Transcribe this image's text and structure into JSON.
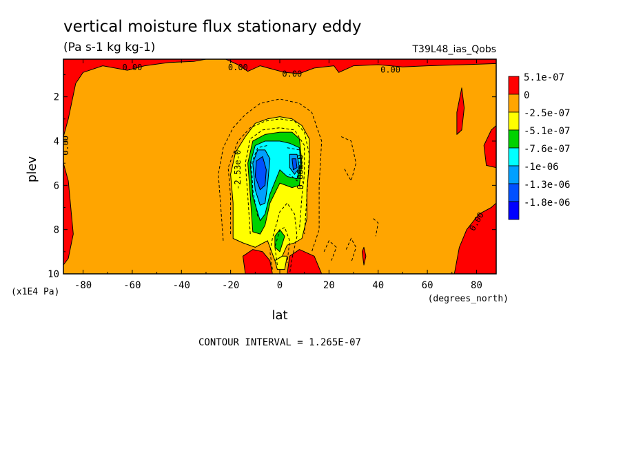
{
  "chart_data": {
    "type": "heatmap",
    "title": "vertical moisture flux stationary eddy",
    "units_label": "(Pa s-1 kg kg-1)",
    "run_label": "T39L48_ias_Qobs",
    "xlabel": "lat",
    "ylabel": "plev",
    "x_units": "(degrees_north)",
    "y_units": "(x1E4 Pa)",
    "xlim": [
      -88,
      88
    ],
    "ylim": [
      10,
      0.3
    ],
    "x_ticks": [
      -80,
      -60,
      -40,
      -20,
      0,
      20,
      40,
      60,
      80
    ],
    "x_tick_labels": [
      "-80",
      "-60",
      "-40",
      "-20",
      "0",
      "20",
      "40",
      "60",
      "80"
    ],
    "y_ticks": [
      2,
      4,
      6,
      8,
      10
    ],
    "y_tick_labels": [
      "2",
      "4",
      "6",
      "8",
      "10"
    ],
    "contour_interval_text": "CONTOUR INTERVAL = 1.265E-07",
    "legend": [
      {
        "label": "5.1e-07",
        "color": "#ff0000"
      },
      {
        "label": "0",
        "color": "#ffa500"
      },
      {
        "label": "-2.5e-07",
        "color": "#ffff00"
      },
      {
        "label": "-5.1e-07",
        "color": "#00d200"
      },
      {
        "label": "-7.6e-07",
        "color": "#00ffff"
      },
      {
        "label": "-1e-06",
        "color": "#00a0ff"
      },
      {
        "label": "-1.3e-06",
        "color": "#0050ff"
      },
      {
        "label": "-1.8e-06",
        "color": "#0000ff"
      }
    ],
    "background_color": "#ffa500",
    "contour_labels": [
      {
        "text": "0.00",
        "lat": -60,
        "plev": 0.8,
        "angle": 0
      },
      {
        "text": "0.00",
        "lat": -17,
        "plev": 0.8,
        "angle": 0
      },
      {
        "text": "0.00",
        "lat": 5,
        "plev": 1.1,
        "angle": 0
      },
      {
        "text": "0.00",
        "lat": 45,
        "plev": 0.9,
        "angle": 0
      },
      {
        "text": "0.00",
        "lat": -86,
        "plev": 4.2,
        "angle": -90
      },
      {
        "text": "0.00",
        "lat": 81,
        "plev": 7.7,
        "angle": -60
      },
      {
        "text": "-2.53e-0",
        "lat": -16,
        "plev": 5.3,
        "angle": -90
      },
      {
        "text": "0.00e+0",
        "lat": 9.5,
        "plev": 5.4,
        "angle": -90
      }
    ],
    "regions": [
      {
        "value": "pos",
        "color": "#ff0000",
        "points": [
          [
            -88,
            0.3
          ],
          [
            -88,
            3.8
          ],
          [
            -86,
            3.0
          ],
          [
            -83,
            1.4
          ],
          [
            -80,
            0.9
          ],
          [
            -72,
            0.6
          ],
          [
            -62,
            0.8
          ],
          [
            -55,
            0.6
          ],
          [
            -45,
            0.45
          ],
          [
            -35,
            0.4
          ],
          [
            -30,
            0.3
          ]
        ]
      },
      {
        "value": "pos",
        "color": "#ff0000",
        "points": [
          [
            -88,
            5.0
          ],
          [
            -86,
            5.8
          ],
          [
            -85,
            7.0
          ],
          [
            -84,
            8.2
          ],
          [
            -86,
            9.3
          ],
          [
            -88,
            9.6
          ]
        ]
      },
      {
        "value": "pos",
        "color": "#ff0000",
        "points": [
          [
            -22,
            0.3
          ],
          [
            -17,
            0.55
          ],
          [
            -13,
            0.85
          ],
          [
            -8,
            0.6
          ],
          [
            -3,
            0.75
          ],
          [
            2,
            0.9
          ],
          [
            8,
            0.95
          ],
          [
            14,
            0.7
          ],
          [
            22,
            0.6
          ],
          [
            24,
            0.9
          ],
          [
            30,
            0.6
          ],
          [
            40,
            0.55
          ],
          [
            50,
            0.65
          ],
          [
            60,
            0.6
          ],
          [
            75,
            0.55
          ],
          [
            88,
            0.5
          ],
          [
            88,
            0.3
          ]
        ]
      },
      {
        "value": "pos",
        "color": "#ff0000",
        "points": [
          [
            -14,
            10
          ],
          [
            -15,
            9.2
          ],
          [
            -11,
            8.9
          ],
          [
            -7,
            9.0
          ],
          [
            -4,
            9.4
          ],
          [
            -3,
            10
          ]
        ]
      },
      {
        "value": "pos",
        "color": "#ff0000",
        "points": [
          [
            3,
            10
          ],
          [
            4,
            9.2
          ],
          [
            8,
            8.9
          ],
          [
            14,
            9.2
          ],
          [
            17,
            10
          ]
        ]
      },
      {
        "value": "pos",
        "color": "#ff0000",
        "points": [
          [
            71,
            10
          ],
          [
            73,
            8.8
          ],
          [
            76,
            8.0
          ],
          [
            81,
            7.3
          ],
          [
            86,
            7.0
          ],
          [
            88,
            6.8
          ],
          [
            88,
            10
          ]
        ]
      },
      {
        "value": "pos",
        "color": "#ff0000",
        "points": [
          [
            88,
            5.2
          ],
          [
            84,
            5.1
          ],
          [
            83,
            4.2
          ],
          [
            86,
            3.5
          ],
          [
            88,
            3.3
          ]
        ]
      },
      {
        "value": "pos",
        "color": "#ff0000",
        "points": [
          [
            72,
            2.7
          ],
          [
            74,
            1.6
          ],
          [
            75,
            2.5
          ],
          [
            74,
            3.5
          ],
          [
            72,
            3.7
          ]
        ]
      },
      {
        "value": "pos",
        "color": "#ff0000",
        "points": [
          [
            33.5,
            9.0
          ],
          [
            34.2,
            8.8
          ],
          [
            35,
            9.2
          ],
          [
            34.2,
            9.6
          ]
        ]
      },
      {
        "value": "neg1",
        "color": "#ffff00",
        "points": [
          [
            -19,
            8.4
          ],
          [
            -19,
            6.8
          ],
          [
            -20,
            5.5
          ],
          [
            -18,
            4.5
          ],
          [
            -14,
            3.8
          ],
          [
            -10,
            3.2
          ],
          [
            -5,
            3.0
          ],
          [
            0,
            2.9
          ],
          [
            5,
            3.0
          ],
          [
            9,
            3.3
          ],
          [
            12,
            3.9
          ],
          [
            12,
            5.0
          ],
          [
            11,
            6.2
          ],
          [
            11,
            7.5
          ],
          [
            9,
            8.4
          ],
          [
            6,
            8.6
          ],
          [
            3,
            8.7
          ],
          [
            1,
            9.2
          ],
          [
            -2,
            9.4
          ],
          [
            -5,
            8.5
          ],
          [
            -10,
            8.8
          ],
          [
            -15,
            8.6
          ]
        ]
      },
      {
        "value": "neg1",
        "color": "#ffff00",
        "points": [
          [
            -2,
            9.4
          ],
          [
            -1,
            9.8
          ],
          [
            2,
            9.8
          ],
          [
            3,
            9.2
          ],
          [
            1,
            9.2
          ]
        ]
      },
      {
        "value": "neg2",
        "color": "#00d200",
        "points": [
          [
            -11,
            8.1
          ],
          [
            -12,
            6.5
          ],
          [
            -13,
            5.0
          ],
          [
            -11,
            4.0
          ],
          [
            -6,
            3.7
          ],
          [
            0,
            3.6
          ],
          [
            5,
            3.6
          ],
          [
            8,
            3.9
          ],
          [
            9,
            5.0
          ],
          [
            8,
            6.0
          ],
          [
            5,
            6.1
          ],
          [
            0,
            5.9
          ],
          [
            -4,
            6.8
          ],
          [
            -6,
            7.8
          ],
          [
            -8,
            8.2
          ]
        ]
      },
      {
        "value": "neg2",
        "color": "#00d200",
        "points": [
          [
            -2,
            8.3
          ],
          [
            0,
            8.0
          ],
          [
            2,
            8.3
          ],
          [
            0,
            9.0
          ],
          [
            -2,
            8.8
          ]
        ]
      },
      {
        "value": "neg3",
        "color": "#00ffff",
        "points": [
          [
            -8,
            7.6
          ],
          [
            -11,
            6.5
          ],
          [
            -12,
            5.0
          ],
          [
            -10,
            4.2
          ],
          [
            -6,
            4.0
          ],
          [
            0,
            4.0
          ],
          [
            4,
            4.1
          ],
          [
            8,
            4.3
          ],
          [
            8.5,
            5.0
          ],
          [
            7,
            5.7
          ],
          [
            3,
            5.6
          ],
          [
            0,
            5.3
          ],
          [
            -4,
            6.4
          ],
          [
            -6,
            7.3
          ]
        ]
      },
      {
        "value": "neg4",
        "color": "#00a0ff",
        "points": [
          [
            -8,
            6.9
          ],
          [
            -10,
            6.2
          ],
          [
            -11,
            5.0
          ],
          [
            -9,
            4.4
          ],
          [
            -6,
            4.4
          ],
          [
            -4,
            4.8
          ],
          [
            -5,
            6.0
          ],
          [
            -6,
            6.8
          ]
        ]
      },
      {
        "value": "neg4",
        "color": "#00a0ff",
        "points": [
          [
            4,
            4.6
          ],
          [
            7,
            4.6
          ],
          [
            8,
            5.2
          ],
          [
            6,
            5.5
          ],
          [
            4,
            5.2
          ]
        ]
      },
      {
        "value": "neg5",
        "color": "#0050ff",
        "points": [
          [
            -8,
            6.2
          ],
          [
            -10,
            5.6
          ],
          [
            -9.5,
            4.9
          ],
          [
            -7,
            4.7
          ],
          [
            -5.5,
            5.3
          ],
          [
            -6,
            6.0
          ]
        ]
      },
      {
        "value": "neg5",
        "color": "#0050ff",
        "points": [
          [
            5,
            4.8
          ],
          [
            6.5,
            4.8
          ],
          [
            7,
            5.2
          ],
          [
            5.5,
            5.3
          ]
        ]
      }
    ],
    "dashed_contours": [
      [
        [
          -23,
          8.5
        ],
        [
          -24,
          7.0
        ],
        [
          -25,
          5.5
        ],
        [
          -23,
          4.3
        ],
        [
          -19,
          3.4
        ],
        [
          -14,
          2.8
        ],
        [
          -8,
          2.3
        ],
        [
          0,
          2.1
        ],
        [
          8,
          2.3
        ],
        [
          13,
          2.7
        ],
        [
          17,
          4.0
        ],
        [
          16,
          6.0
        ],
        [
          16,
          8.0
        ],
        [
          13,
          9.0
        ]
      ],
      [
        [
          -20,
          8.2
        ],
        [
          -20,
          6.5
        ],
        [
          -21,
          5.2
        ],
        [
          -17,
          4.0
        ],
        [
          -12,
          3.4
        ],
        [
          -6,
          3.1
        ],
        [
          0,
          3.0
        ],
        [
          6,
          3.1
        ],
        [
          10,
          3.6
        ],
        [
          12,
          4.6
        ],
        [
          11,
          6.5
        ],
        [
          10,
          8.2
        ]
      ],
      [
        [
          -12,
          8.2
        ],
        [
          -13,
          6.5
        ],
        [
          -14,
          5.0
        ],
        [
          -12,
          3.9
        ],
        [
          -7,
          3.5
        ],
        [
          0,
          3.4
        ],
        [
          6,
          3.5
        ],
        [
          10,
          4.2
        ],
        [
          10,
          5.5
        ],
        [
          9,
          6.5
        ],
        [
          8,
          8.0
        ]
      ],
      [
        [
          -9,
          7.4
        ],
        [
          -11,
          6.2
        ],
        [
          -11.5,
          5.0
        ],
        [
          -9,
          4.3
        ],
        [
          -5,
          4.2
        ]
      ],
      [
        [
          3,
          4.3
        ],
        [
          8,
          4.4
        ],
        [
          8.8,
          5.1
        ],
        [
          7,
          5.8
        ],
        [
          4,
          5.5
        ]
      ],
      [
        [
          -3,
          9.8
        ],
        [
          -4,
          9.0
        ],
        [
          -3,
          8.4
        ],
        [
          0,
          7.2
        ],
        [
          3,
          6.8
        ],
        [
          6,
          7.3
        ],
        [
          7,
          8.3
        ],
        [
          5,
          9.3
        ],
        [
          4,
          10
        ]
      ],
      [
        [
          -1,
          9.6
        ],
        [
          -2,
          8.8
        ],
        [
          0,
          8.0
        ],
        [
          2,
          7.9
        ],
        [
          4,
          8.5
        ],
        [
          3,
          9.5
        ]
      ],
      [
        [
          25,
          3.8
        ],
        [
          29,
          4.0
        ],
        [
          31,
          5.0
        ],
        [
          29,
          5.8
        ],
        [
          26,
          5.2
        ]
      ],
      [
        [
          18,
          9.0
        ],
        [
          20,
          8.5
        ],
        [
          23,
          8.8
        ],
        [
          21,
          9.4
        ]
      ],
      [
        [
          27,
          8.9
        ],
        [
          29,
          8.4
        ],
        [
          31,
          8.8
        ],
        [
          29,
          9.5
        ]
      ],
      [
        [
          38,
          7.5
        ],
        [
          40,
          7.7
        ],
        [
          39,
          8.3
        ]
      ]
    ]
  }
}
